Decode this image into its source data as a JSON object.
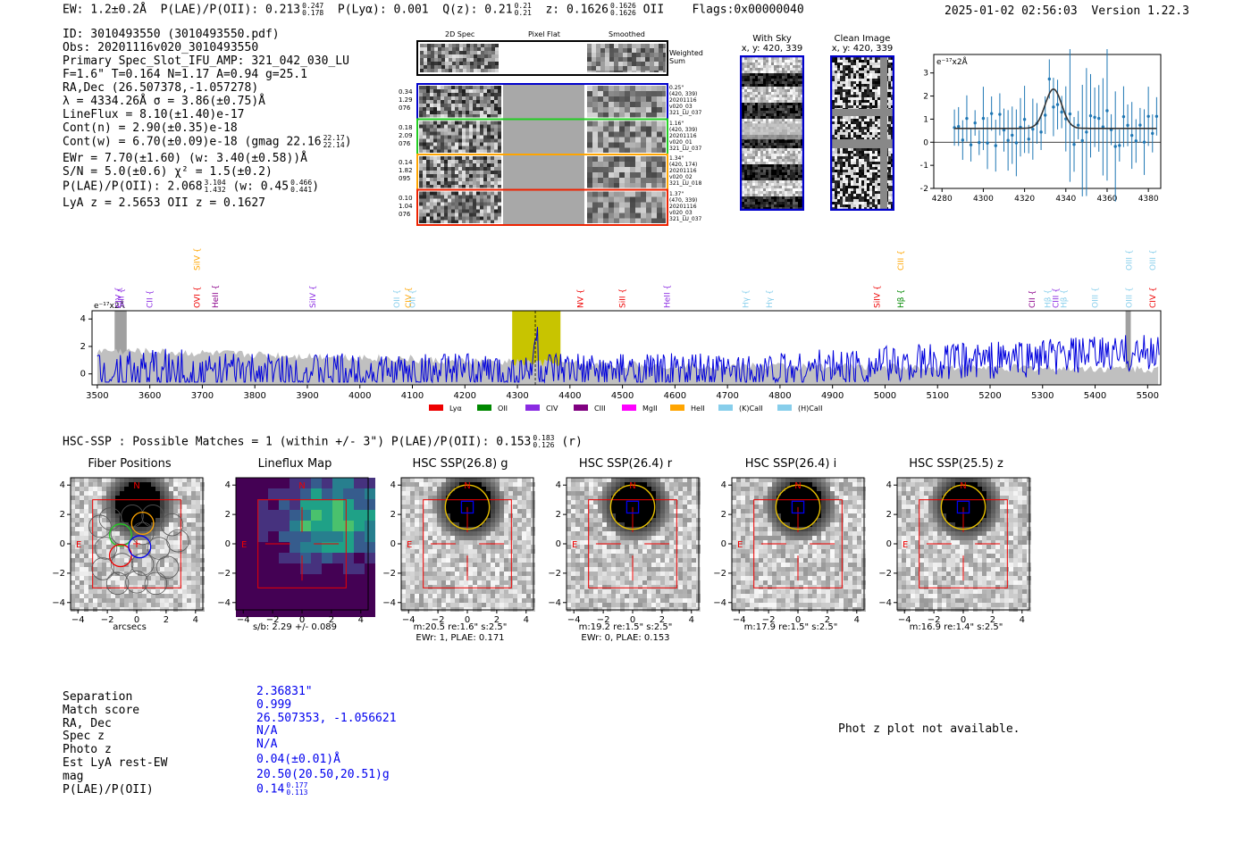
{
  "header": {
    "ew": "EW: 1.2±0.2Å",
    "plae_label": "P(LAE)/P(OII): 0.213",
    "plae_hi": "0.247",
    "plae_lo": "0.178",
    "plya": "P(Lyα): 0.001",
    "qz_label": "Q(z): 0.21",
    "qz_hi": "0.21",
    "qz_lo": "0.21",
    "z_label": "z: 0.1626",
    "z_hi": "0.1626",
    "z_lo": "0.1626",
    "z_line": "OII",
    "flags": "Flags:0x00000040",
    "datetime": "2025-01-02 02:56:03",
    "version": "Version 1.22.3"
  },
  "info": {
    "id": "ID: 3010493550 (3010493550.pdf)",
    "obs": "Obs: 20201116v020_3010493550",
    "primary": "Primary Spec_Slot_IFU_AMP: 321_042_030_LU",
    "fline": "F=1.6\"  T=0.164  N=1.17  A=0.94  g=25.1",
    "radec": "RA,Dec (26.507378,-1.057278)",
    "lambda": "λ = 4334.26Å  σ = 3.86(±0.75)Å",
    "lineflux": "LineFlux = 8.10(±1.40)e-17",
    "contn": "Cont(n) = 2.90(±0.35)e-18",
    "contw": "Cont(w) = 6.70(±0.09)e-18 (gmag 22.16",
    "gmag_hi": "22.17",
    "gmag_lo": "22.14",
    "ewr": "EWr = 7.70(±1.60) (w: 3.40(±0.58))Å",
    "sn": "S/N = 5.0(±0.6)  χ² = 1.5(±0.2)",
    "plae": "P(LAE)/P(OII): 2.068",
    "plae_hi": "3.104",
    "plae_lo": "1.432",
    "plae_w": "(w: 0.45",
    "plae_w_hi": "0.466",
    "plae_w_lo": "0.441",
    "lyaz": "LyA z = 2.5653   OII z = 0.1627"
  },
  "cutouts": {
    "col_2d": "2D Spec",
    "col_flat": "Pixel Flat",
    "col_smooth": "Smoothed",
    "weighted": "Weighted",
    "sum": "Sum",
    "rows": [
      {
        "color": "#0000cc",
        "l1": "0.34",
        "l2": "1.29",
        "l3": "076",
        "r1": "0.25\"",
        "r2": "(420, 339)",
        "r3": "20201116",
        "r4": "v020_03",
        "r5": "321_LU_037"
      },
      {
        "color": "#22cc22",
        "l1": "0.18",
        "l2": "2.09",
        "l3": "076",
        "r1": "1.16\"",
        "r2": "(420, 339)",
        "r3": "20201116",
        "r4": "v020_01",
        "r5": "321_LU_037"
      },
      {
        "color": "#ffa500",
        "l1": "0.14",
        "l2": "1.82",
        "l3": "095",
        "r1": "1.34\"",
        "r2": "(420, 174)",
        "r3": "20201116",
        "r4": "v020_02",
        "r5": "321_LU_018"
      },
      {
        "color": "#ee2200",
        "l1": "0.10",
        "l2": "1.04",
        "l3": "076",
        "r1": "1.37\"",
        "r2": "(470, 339)",
        "r3": "20201116",
        "r4": "v020_03",
        "r5": "321_LU_037"
      }
    ]
  },
  "sky": {
    "with_sky": "With Sky",
    "clean": "Clean Image",
    "coords": "x, y: 420, 339"
  },
  "fit_plot": {
    "unit": "e⁻¹⁷x2Å",
    "xticks": [
      "4280",
      "4300",
      "4320",
      "4340",
      "4360",
      "4380"
    ],
    "yticks": [
      "3",
      "2",
      "1",
      "0",
      "-1",
      "-2"
    ]
  },
  "spectrum": {
    "unit": "e⁻¹⁷x2Å",
    "yticks": [
      "4",
      "2",
      "0"
    ],
    "xticks": [
      "3500",
      "3600",
      "3700",
      "3800",
      "3900",
      "4000",
      "4100",
      "4200",
      "4300",
      "4400",
      "4500",
      "4600",
      "4700",
      "4800",
      "4900",
      "5000",
      "5100",
      "5200",
      "5300",
      "5400",
      "5500"
    ],
    "line_labels": [
      {
        "t": "CIV",
        "c": "#8a2be2",
        "w": 3540,
        "y": 1
      },
      {
        "t": "SiII",
        "c": "#8a2be2",
        "w": 3545,
        "y": 1
      },
      {
        "t": "SiIV",
        "c": "#ffa500",
        "w": 3690,
        "y": 0
      },
      {
        "t": "CII",
        "c": "#8a2be2",
        "w": 3600,
        "y": 1
      },
      {
        "t": "OVI",
        "c": "#ee0000",
        "w": 3690,
        "y": 1
      },
      {
        "t": "HeII",
        "c": "#8a008a",
        "w": 3725,
        "y": 1
      },
      {
        "t": "SiIV",
        "c": "#8a2be2",
        "w": 3910,
        "y": 1
      },
      {
        "t": "OII",
        "c": "#87ceeb",
        "w": 4070,
        "y": 1
      },
      {
        "t": "CIV",
        "c": "#ffa500",
        "w": 4092,
        "y": 1
      },
      {
        "t": "OII",
        "c": "#87ceeb",
        "w": 4100,
        "y": 1
      },
      {
        "t": "NV",
        "c": "#ee0000",
        "w": 4420,
        "y": 1
      },
      {
        "t": "SiII",
        "c": "#ee0000",
        "w": 4500,
        "y": 1
      },
      {
        "t": "HeII",
        "c": "#8a2be2",
        "w": 4585,
        "y": 1
      },
      {
        "t": "Hγ",
        "c": "#87ceeb",
        "w": 4735,
        "y": 1
      },
      {
        "t": "Hγ",
        "c": "#87ceeb",
        "w": 4780,
        "y": 1
      },
      {
        "t": "SiIV",
        "c": "#ee0000",
        "w": 4985,
        "y": 1
      },
      {
        "t": "CIII",
        "c": "#ffa500",
        "w": 5030,
        "y": 0
      },
      {
        "t": "Hβ",
        "c": "#008800",
        "w": 5030,
        "y": 1
      },
      {
        "t": "CII",
        "c": "#8a008a",
        "w": 5280,
        "y": 1
      },
      {
        "t": "Hβ",
        "c": "#87ceeb",
        "w": 5310,
        "y": 1
      },
      {
        "t": "CIII",
        "c": "#8a2be2",
        "w": 5325,
        "y": 1
      },
      {
        "t": "Hβ",
        "c": "#87ceeb",
        "w": 5340,
        "y": 1
      },
      {
        "t": "OIII",
        "c": "#87ceeb",
        "w": 5400,
        "y": 1
      },
      {
        "t": "OIII",
        "c": "#87ceeb",
        "w": 5465,
        "y": 0
      },
      {
        "t": "OIII",
        "c": "#87ceeb",
        "w": 5465,
        "y": 1
      },
      {
        "t": "OIII",
        "c": "#87ceeb",
        "w": 5510,
        "y": 0
      },
      {
        "t": "CIV",
        "c": "#ee0000",
        "w": 5510,
        "y": 1
      }
    ],
    "legend": [
      {
        "label": "Lyα",
        "color": "#ee0000"
      },
      {
        "label": "OII",
        "color": "#008800"
      },
      {
        "label": "CIV",
        "color": "#8a2be2"
      },
      {
        "label": "CIII",
        "color": "#800080"
      },
      {
        "label": "MgII",
        "color": "#ff00ff"
      },
      {
        "label": "HeII",
        "color": "#ffa500"
      },
      {
        "label": "(K)CaII",
        "color": "#87ceeb"
      },
      {
        "label": "(H)CaII",
        "color": "#87ceeb"
      }
    ]
  },
  "hsc": {
    "title": "HSC-SSP : Possible Matches = 1 (within +/- 3\")  P(LAE)/P(OII): 0.153",
    "plae_hi": "0.183",
    "plae_lo": "0.126",
    "band": "(r)"
  },
  "panels": [
    {
      "title": "Fiber Positions",
      "cap1": "arcsecs",
      "cap2": ""
    },
    {
      "title": "Lineflux Map",
      "cap1": "s/b: 2.29 +/- 0.089",
      "cap2": ""
    },
    {
      "title": "HSC SSP(26.8) g",
      "cap1": "m:20.5  re:1.6\"  s:2.5\"",
      "cap2": "EWr: 1, PLAE: 0.171"
    },
    {
      "title": "HSC SSP(26.4) r",
      "cap1": "m:19.2  re:1.5\"  s:2.5\"",
      "cap2": "EWr: 0, PLAE: 0.153"
    },
    {
      "title": "HSC SSP(26.4) i",
      "cap1": "m:17.9  re:1.5\"  s:2.5\"",
      "cap2": ""
    },
    {
      "title": "HSC SSP(25.5) z",
      "cap1": "m:16.9  re:1.4\"  s:2.5\"",
      "cap2": ""
    }
  ],
  "panel_ticks": {
    "x": [
      "−4",
      "−2",
      "0",
      "2",
      "4"
    ],
    "y": [
      "4",
      "2",
      "0",
      "−2",
      "−4"
    ],
    "N": "N",
    "E": "E"
  },
  "match": {
    "labels": [
      "Separation",
      "Match score",
      "RA, Dec",
      "Spec z",
      "Photo z",
      "Est LyA rest-EW",
      "mag",
      "P(LAE)/P(OII)"
    ],
    "values": [
      "2.36831\"",
      "0.999",
      "26.507353, -1.056621",
      "N/A",
      "N/A",
      "0.04(±0.01)Å",
      "20.50(20.50,20.51)g",
      "0.14"
    ],
    "plae_hi": "0.177",
    "plae_lo": "0.113"
  },
  "photz": "Phot z plot not available."
}
